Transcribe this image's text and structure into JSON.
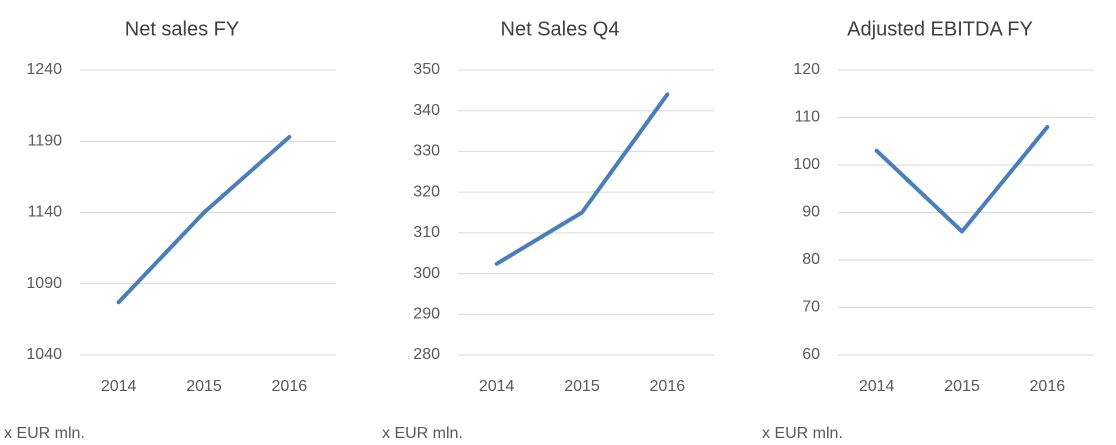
{
  "chart_data": [
    {
      "type": "line",
      "title": "Net sales FY",
      "categories": [
        "2014",
        "2015",
        "2016"
      ],
      "values": [
        1077,
        1140,
        1193
      ],
      "color": "#4a7ebb",
      "ylim": [
        1040,
        1240
      ],
      "yticks": [
        1040,
        1090,
        1140,
        1190,
        1240
      ],
      "grid": true,
      "note": "x EUR mln."
    },
    {
      "type": "line",
      "title": "Net Sales Q4",
      "categories": [
        "2014",
        "2015",
        "2016"
      ],
      "values": [
        302.4,
        315,
        344
      ],
      "color": "#4a7ebb",
      "ylim": [
        280,
        350
      ],
      "yticks": [
        280,
        290,
        300,
        310,
        320,
        330,
        340,
        350
      ],
      "grid": true,
      "note": "x EUR mln."
    },
    {
      "type": "line",
      "title": "Adjusted EBITDA FY",
      "categories": [
        "2014",
        "2015",
        "2016"
      ],
      "values": [
        103,
        86,
        108
      ],
      "color": "#4a7ebb",
      "ylim": [
        60,
        120
      ],
      "yticks": [
        60,
        70,
        80,
        90,
        100,
        110,
        120
      ],
      "grid": true,
      "note": "x EUR mln."
    }
  ]
}
